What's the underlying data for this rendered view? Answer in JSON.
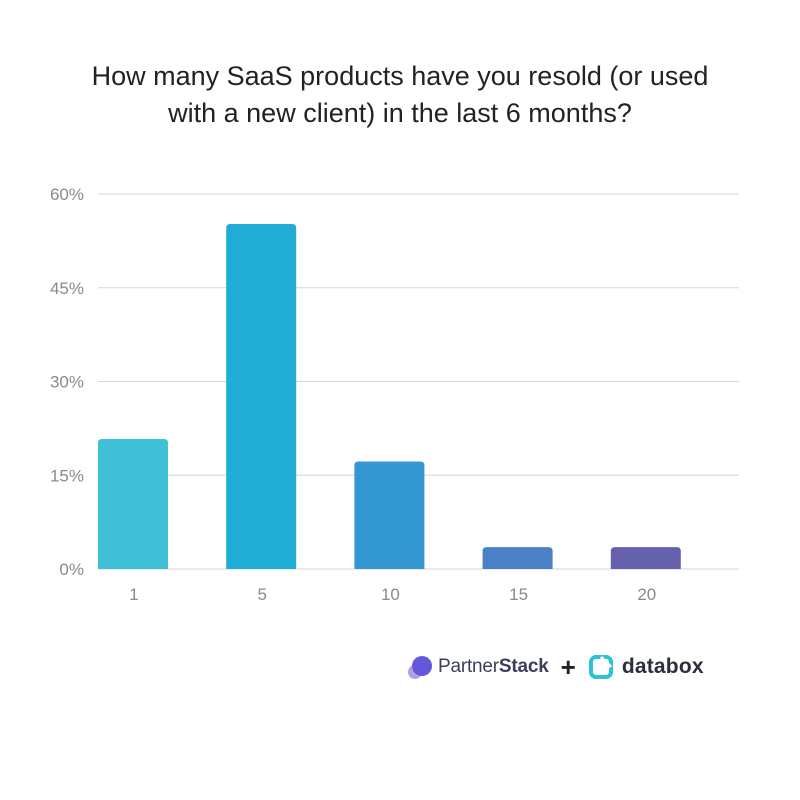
{
  "title_lines": [
    "How many SaaS products have you resold (or used",
    "with a new client) in the last 6 months?"
  ],
  "chart_data": {
    "type": "bar",
    "title": "How many SaaS products have you resold (or used with a new client) in the last 6 months?",
    "categories": [
      "1",
      "5",
      "10",
      "15",
      "20"
    ],
    "values": [
      20.8,
      55.2,
      17.2,
      3.5,
      3.5
    ],
    "unit": "%",
    "ylim": [
      0,
      60
    ],
    "yticks": [
      0,
      15,
      30,
      45,
      60
    ],
    "ytick_labels": [
      "0%",
      "15%",
      "30%",
      "45%",
      "60%"
    ],
    "grid": true,
    "colors": [
      "#40c0d6",
      "#20acd4",
      "#3398d2",
      "#4b80c6",
      "#6561ad"
    ]
  },
  "footer": {
    "partner_name_light": "Partner",
    "partner_name_bold": "Stack",
    "plus": "+",
    "databox_name": "databox",
    "partner_logo_icon": "partnerstack-logo-icon",
    "databox_logo_icon": "databox-logo-icon"
  }
}
